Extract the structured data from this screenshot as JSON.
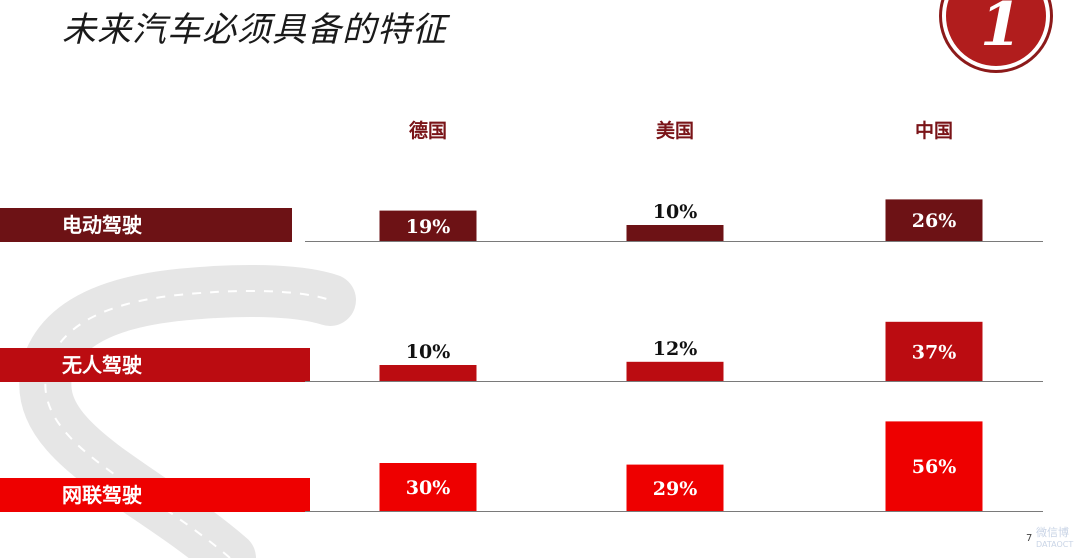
{
  "title": "未来汽车必须具备的特征",
  "badge_text": "1",
  "page_number": "7",
  "watermark": "微信博",
  "watermark_sub": "DATAOCT",
  "colors": {
    "row_electric": "#6d1215",
    "row_autonomous": "#bb0c11",
    "row_connected": "#ee0000",
    "column_header": "#7a1418",
    "baseline": "#7a7a7a",
    "road": "#e6e6e6",
    "road_dash": "#ffffff"
  },
  "chart_data": {
    "type": "bar",
    "categories": [
      "德国",
      "美国",
      "中国"
    ],
    "series": [
      {
        "name": "电动驾驶",
        "values": [
          19,
          10,
          26
        ],
        "labels": [
          "19%",
          "10%",
          "26%"
        ]
      },
      {
        "name": "无人驾驶",
        "values": [
          10,
          12,
          37
        ],
        "labels": [
          "10%",
          "12%",
          "37%"
        ]
      },
      {
        "name": "网联驾驶",
        "values": [
          30,
          29,
          56
        ],
        "labels": [
          "30%",
          "29%",
          "56%"
        ]
      }
    ],
    "value_unit": "%",
    "legend": "none",
    "grid": false
  }
}
